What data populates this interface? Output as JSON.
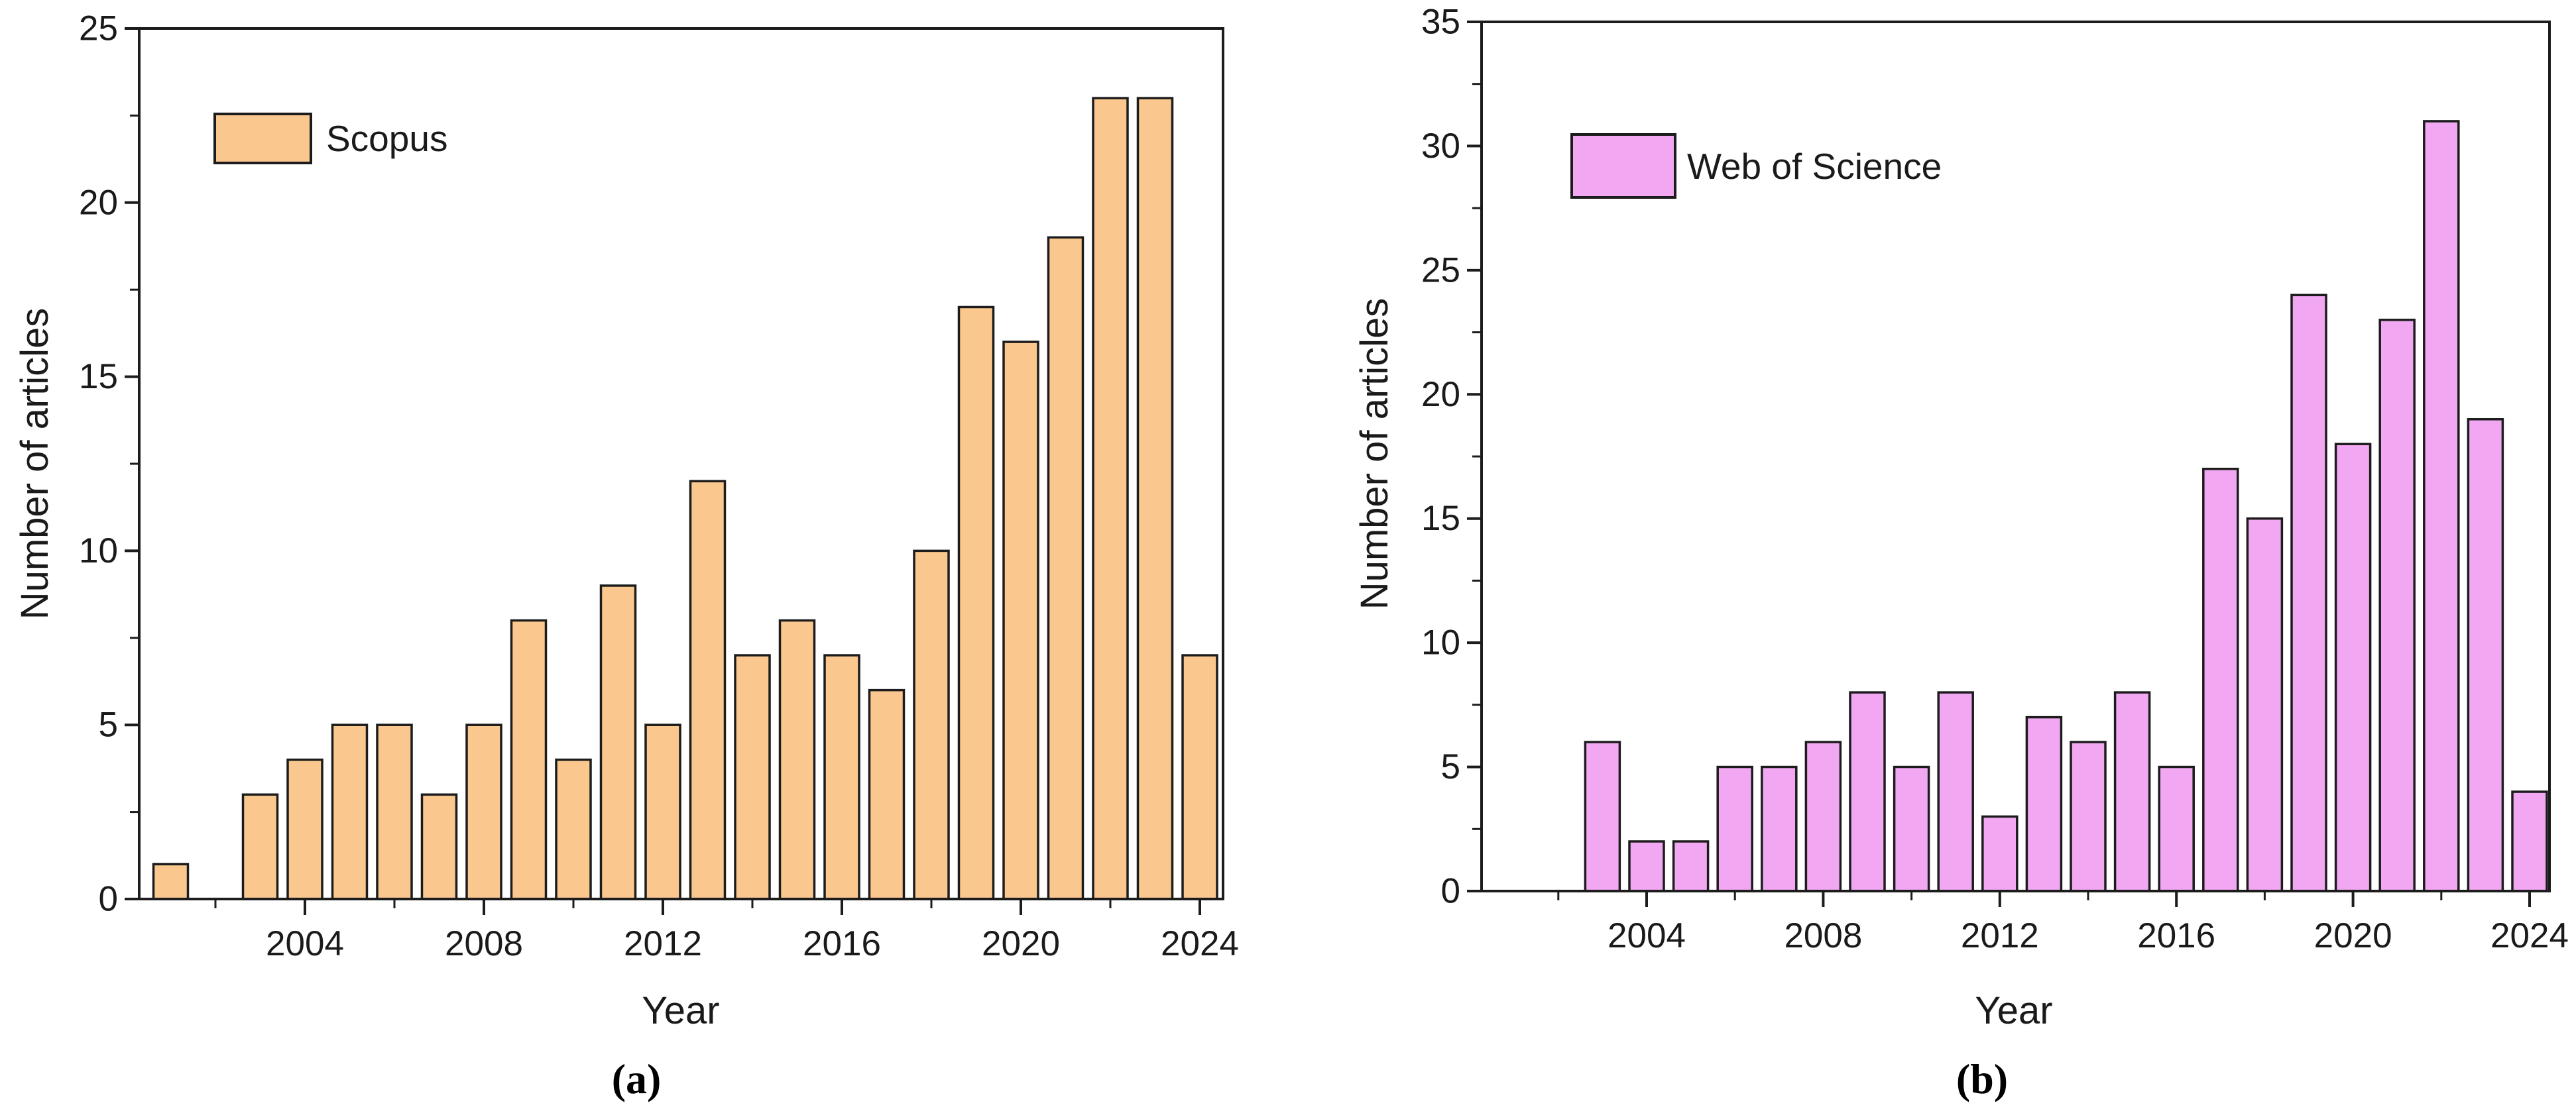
{
  "figure": {
    "panels": [
      {
        "id": "a",
        "panel_label": "(a)",
        "legend_label": "Scopus",
        "xlabel": "Year",
        "ylabel": "Number of articles",
        "colors": {
          "bar_fill": "#FAC88F",
          "bar_stroke": "#1c1c1c",
          "axis": "#1c1c1c",
          "text": "#1a1a1a"
        }
      },
      {
        "id": "b",
        "panel_label": "(b)",
        "legend_label": "Web of Science",
        "xlabel": "Year",
        "ylabel": "Number of articles",
        "colors": {
          "bar_fill": "#F1A7F1",
          "bar_stroke": "#1c1c1c",
          "axis": "#1c1c1c",
          "text": "#1a1a1a"
        }
      }
    ]
  },
  "chart_data": [
    {
      "type": "bar",
      "panel": "a",
      "series_name": "Scopus",
      "xlabel": "Year",
      "ylabel": "Number of articles",
      "legend": [
        "Scopus"
      ],
      "legend_position": "top-left",
      "grid": false,
      "ylim": [
        0,
        25
      ],
      "y_ticks": [
        0,
        5,
        10,
        15,
        20,
        25
      ],
      "y_minor_step": 2.5,
      "x_tick_labels": [
        2004,
        2008,
        2012,
        2016,
        2020,
        2024
      ],
      "x_minor_years": [
        2002,
        2006,
        2010,
        2014,
        2018,
        2022
      ],
      "x": [
        2001,
        2002,
        2003,
        2004,
        2005,
        2006,
        2007,
        2008,
        2009,
        2010,
        2011,
        2012,
        2013,
        2014,
        2015,
        2016,
        2017,
        2018,
        2019,
        2020,
        2021,
        2022,
        2023,
        2024
      ],
      "values": [
        1,
        0,
        3,
        4,
        5,
        5,
        3,
        5,
        8,
        4,
        9,
        5,
        12,
        7,
        8,
        7,
        6,
        10,
        17,
        16,
        19,
        23,
        23,
        7
      ]
    },
    {
      "type": "bar",
      "panel": "b",
      "series_name": "Web of Science",
      "xlabel": "Year",
      "ylabel": "Number of articles",
      "legend": [
        "Web of Science"
      ],
      "legend_position": "top-left",
      "grid": false,
      "ylim": [
        0,
        35
      ],
      "y_ticks": [
        0,
        5,
        10,
        15,
        20,
        25,
        30,
        35
      ],
      "y_minor_step": 2.5,
      "x_tick_labels": [
        2004,
        2008,
        2012,
        2016,
        2020,
        2024
      ],
      "x_minor_years": [
        2002,
        2006,
        2010,
        2014,
        2018,
        2022
      ],
      "x": [
        2003,
        2004,
        2005,
        2006,
        2007,
        2008,
        2009,
        2010,
        2011,
        2012,
        2013,
        2014,
        2015,
        2016,
        2017,
        2018,
        2019,
        2020,
        2021,
        2022,
        2023,
        2024
      ],
      "values": [
        6,
        2,
        2,
        5,
        5,
        6,
        8,
        5,
        8,
        3,
        7,
        6,
        8,
        5,
        17,
        15,
        24,
        18,
        23,
        31,
        19,
        4
      ]
    }
  ]
}
